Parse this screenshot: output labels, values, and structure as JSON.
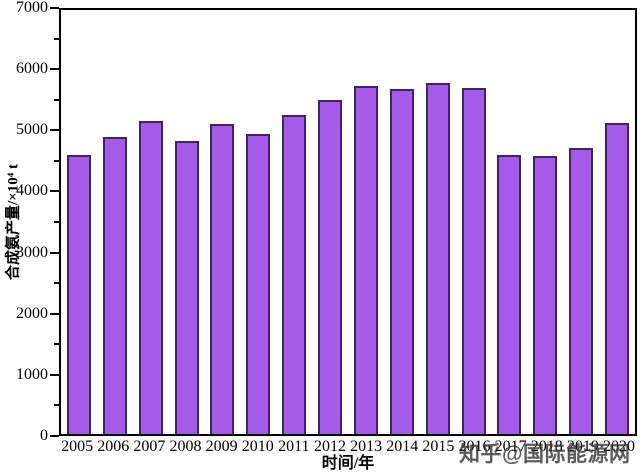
{
  "chart_data": {
    "type": "bar",
    "title": "",
    "xlabel": "时间/年",
    "ylabel": "合成氨产量/×10⁴ t",
    "categories": [
      "2005",
      "2006",
      "2007",
      "2008",
      "2009",
      "2010",
      "2011",
      "2012",
      "2013",
      "2014",
      "2015",
      "2016",
      "2017",
      "2018",
      "2019",
      "2020"
    ],
    "values": [
      4600,
      4900,
      5160,
      4840,
      5120,
      4950,
      5270,
      5520,
      5750,
      5700,
      5790,
      5720,
      4610,
      4590,
      4720,
      5140
    ],
    "ylim": [
      0,
      7000
    ],
    "ytick_step": 1000,
    "yminor_step": 500,
    "ytick_labels": [
      "0",
      "1000",
      "2000",
      "3000",
      "4000",
      "5000",
      "6000",
      "7000"
    ],
    "grid": false,
    "legend": false,
    "bar_color": "#a55ae8",
    "bar_edge_color": "#3a2760",
    "axis_color": "#000000"
  },
  "watermark": {
    "text": "知乎@国际能源网"
  }
}
